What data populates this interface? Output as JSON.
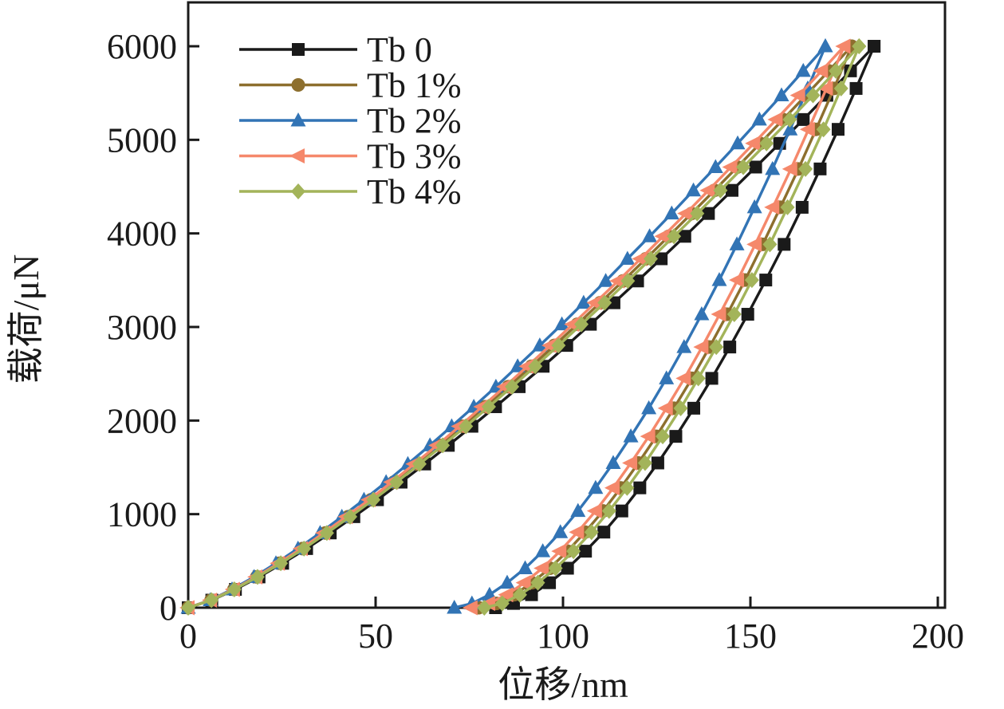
{
  "figure": {
    "background": "#ffffff",
    "ink_color": "#1a1a1a"
  },
  "chart_data": {
    "type": "line",
    "title": "",
    "xlabel": "位移/nm",
    "ylabel": "载荷/μN",
    "xlim": [
      0,
      200
    ],
    "ylim": [
      0,
      6000
    ],
    "x_ticks": [
      "0",
      "50",
      "100",
      "150",
      "200"
    ],
    "x_tick_values": [
      0,
      50,
      100,
      150,
      200
    ],
    "y_ticks": [
      "0",
      "1000",
      "2000",
      "3000",
      "4000",
      "5000",
      "6000"
    ],
    "y_tick_values": [
      0,
      1000,
      2000,
      3000,
      4000,
      5000,
      6000
    ],
    "grid": false,
    "legend_position": "top-left",
    "load_P": [
      0,
      81,
      196,
      329,
      475,
      632,
      799,
      973,
      1154,
      1342,
      1536,
      1735,
      1939,
      2148,
      2362,
      2580,
      2803,
      3029,
      3259,
      3492,
      3729,
      3969,
      4213,
      4460,
      4709,
      4962,
      5217,
      5476,
      5737,
      6000
    ],
    "unload_P": [
      6000,
      5549,
      5112,
      4689,
      4279,
      3883,
      3502,
      3136,
      2786,
      2451,
      2132,
      1831,
      1547,
      1281,
      1034,
      808,
      604,
      422,
      267,
      139,
      46,
      0
    ],
    "series": [
      {
        "name": "Tb 0",
        "color": "#1a1a1a",
        "marker": "square",
        "h_max": 183,
        "h_residual": 82,
        "load_h": [
          0,
          6.3,
          12.6,
          18.9,
          25.2,
          31.6,
          37.9,
          44.2,
          50.5,
          56.8,
          63.1,
          69.4,
          75.7,
          82.0,
          88.3,
          94.7,
          101.0,
          107.3,
          113.6,
          119.9,
          126.2,
          132.5,
          138.8,
          145.1,
          151.4,
          157.8,
          164.1,
          170.4,
          176.7,
          183
        ],
        "unload_h": [
          183,
          178.2,
          173.4,
          168.6,
          163.8,
          159.0,
          154.1,
          149.3,
          144.5,
          139.7,
          134.9,
          130.1,
          125.3,
          120.5,
          115.7,
          110.9,
          106.0,
          101.2,
          96.4,
          91.6,
          86.8,
          82
        ]
      },
      {
        "name": "Tb 1%",
        "color": "#8d6f2e",
        "marker": "circle",
        "h_max": 177,
        "h_residual": 77.5,
        "load_h": [
          0,
          6.1,
          12.2,
          18.3,
          24.4,
          30.5,
          36.6,
          42.7,
          48.8,
          54.9,
          61.0,
          67.1,
          73.2,
          79.3,
          85.4,
          91.6,
          97.7,
          103.8,
          109.9,
          116.0,
          122.1,
          128.2,
          134.3,
          140.4,
          146.5,
          152.6,
          158.7,
          164.8,
          170.9,
          177
        ],
        "unload_h": [
          177,
          172.3,
          167.5,
          162.8,
          158.0,
          153.3,
          148.6,
          143.8,
          139.1,
          134.4,
          129.6,
          124.9,
          120.1,
          115.4,
          110.7,
          105.9,
          101.2,
          96.5,
          91.7,
          87.0,
          82.2,
          77.5
        ]
      },
      {
        "name": "Tb 2%",
        "color": "#3274b5",
        "marker": "triangle-up",
        "h_max": 170,
        "h_residual": 71,
        "load_h": [
          0,
          5.9,
          11.7,
          17.6,
          23.4,
          29.3,
          35.2,
          41.0,
          46.9,
          52.8,
          58.6,
          64.5,
          70.3,
          76.2,
          82.1,
          87.9,
          93.8,
          99.7,
          105.5,
          111.4,
          117.2,
          123.1,
          129.0,
          134.8,
          140.7,
          146.6,
          152.4,
          158.3,
          164.1,
          170
        ],
        "unload_h": [
          170,
          165.3,
          160.6,
          155.9,
          151.1,
          146.4,
          141.7,
          137.0,
          132.3,
          127.6,
          122.9,
          118.1,
          113.4,
          108.7,
          104.0,
          99.3,
          94.6,
          89.9,
          85.1,
          80.4,
          75.7,
          71
        ]
      },
      {
        "name": "Tb 3%",
        "color": "#f5886b",
        "marker": "triangle-left",
        "h_max": 175,
        "h_residual": 75.5,
        "load_h": [
          0,
          6.0,
          12.1,
          18.1,
          24.1,
          30.2,
          36.2,
          42.2,
          48.3,
          54.3,
          60.3,
          66.4,
          72.4,
          78.4,
          84.5,
          90.5,
          96.6,
          102.6,
          108.6,
          114.7,
          120.7,
          126.7,
          132.8,
          138.8,
          144.8,
          150.9,
          156.9,
          162.9,
          169.0,
          175
        ],
        "unload_h": [
          175,
          170.3,
          165.5,
          160.8,
          156.0,
          151.3,
          146.6,
          141.8,
          137.1,
          132.4,
          127.6,
          122.9,
          118.1,
          113.4,
          108.7,
          103.9,
          99.2,
          94.5,
          89.7,
          85.0,
          80.2,
          75.5
        ]
      },
      {
        "name": "Tb 4%",
        "color": "#a3b45a",
        "marker": "diamond",
        "h_max": 179,
        "h_residual": 79,
        "load_h": [
          0,
          6.2,
          12.3,
          18.5,
          24.7,
          30.9,
          37.0,
          43.2,
          49.4,
          55.6,
          61.7,
          67.9,
          74.1,
          80.2,
          86.4,
          92.6,
          98.8,
          104.9,
          111.1,
          117.3,
          123.4,
          129.6,
          135.8,
          142.0,
          148.1,
          154.3,
          160.5,
          166.7,
          172.8,
          179
        ],
        "unload_h": [
          179,
          174.2,
          169.5,
          164.7,
          159.9,
          155.2,
          150.4,
          145.7,
          140.9,
          136.1,
          131.4,
          126.6,
          121.9,
          117.1,
          112.3,
          107.6,
          102.8,
          98.0,
          93.3,
          88.5,
          83.8,
          79
        ]
      }
    ]
  }
}
